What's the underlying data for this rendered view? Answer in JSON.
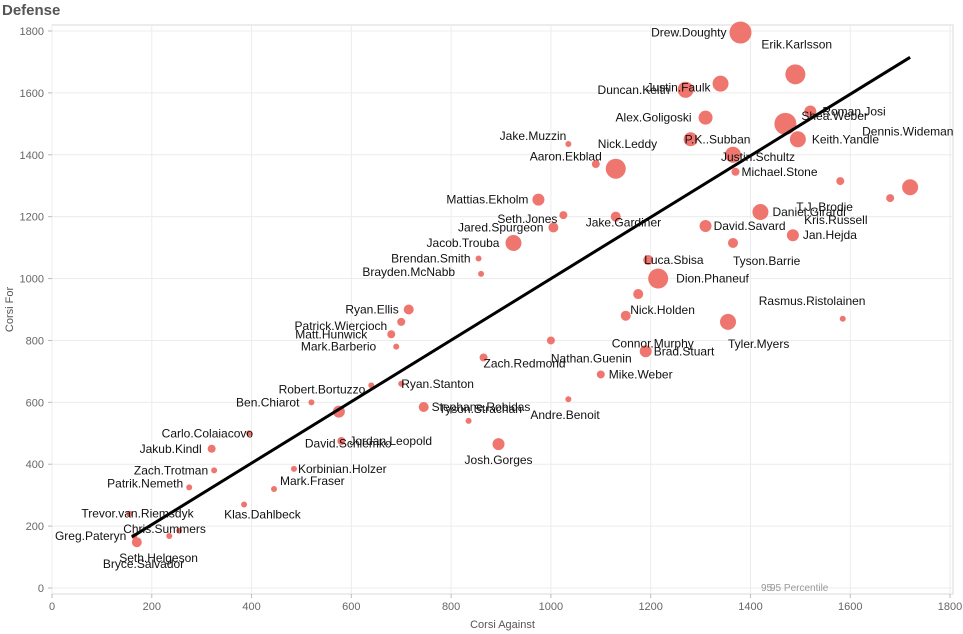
{
  "title": "Defense",
  "chart_data": {
    "type": "scatter",
    "title": "Defense",
    "xlabel": "Corsi Against",
    "ylabel": "Corsi For",
    "xlim": [
      0,
      1800
    ],
    "ylim": [
      0,
      1800
    ],
    "xticks": [
      0,
      200,
      400,
      600,
      800,
      1000,
      1200,
      1400,
      1600,
      1800
    ],
    "yticks": [
      0,
      200,
      400,
      600,
      800,
      1000,
      1200,
      1400,
      1600,
      1800
    ],
    "grid": true,
    "point_color": "#EE6A62",
    "trend_color": "#000000",
    "trend_line": {
      "x": [
        160,
        1720
      ],
      "y": [
        165,
        1715
      ]
    },
    "annotation": "95 Percentile",
    "annotation_extra": "95",
    "labeled_points": [
      {
        "label": "Drew.Doughty",
        "x": 1380,
        "y": 1795,
        "size": 11
      },
      {
        "label": "Erik.Karlsson",
        "x": 1490,
        "y": 1660,
        "size": 10
      },
      {
        "label": "Justin.Faulk",
        "x": 1340,
        "y": 1630,
        "size": 8
      },
      {
        "label": "Duncan.Keith",
        "x": 1270,
        "y": 1610,
        "size": 8
      },
      {
        "label": "Roman.Josi",
        "x": 1520,
        "y": 1540,
        "size": 6
      },
      {
        "label": "Alex.Goligoski",
        "x": 1310,
        "y": 1520,
        "size": 7
      },
      {
        "label": "Shea.Weber",
        "x": 1470,
        "y": 1500,
        "size": 11
      },
      {
        "label": "P.K..Subban",
        "x": 1280,
        "y": 1450,
        "size": 7
      },
      {
        "label": "Jake.Muzzin",
        "x": 1035,
        "y": 1435,
        "size": 3
      },
      {
        "label": "Keith.Yandle",
        "x": 1495,
        "y": 1450,
        "size": 8
      },
      {
        "label": "Nick.Leddy",
        "x": 1090,
        "y": 1370,
        "size": 4
      },
      {
        "label": "Justin.Schultz",
        "x": 1365,
        "y": 1400,
        "size": 8
      },
      {
        "label": "Aaron.Ekblad",
        "x": 1130,
        "y": 1355,
        "size": 10
      },
      {
        "label": "Michael.Stone",
        "x": 1370,
        "y": 1345,
        "size": 4
      },
      {
        "label": "Dennis.Wideman",
        "x": 1720,
        "y": 1295,
        "size": 8
      },
      {
        "label": "T.J..Brodie",
        "x": 1580,
        "y": 1315,
        "size": 4
      },
      {
        "label": "Mattias.Ekholm",
        "x": 975,
        "y": 1255,
        "size": 6
      },
      {
        "label": "Kris.Russell",
        "x": 1680,
        "y": 1260,
        "size": 4
      },
      {
        "label": "Daniel.Girardi",
        "x": 1420,
        "y": 1215,
        "size": 8
      },
      {
        "label": "Seth.Jones",
        "x": 1025,
        "y": 1205,
        "size": 4
      },
      {
        "label": "Jake.Gardiner",
        "x": 1130,
        "y": 1200,
        "size": 5
      },
      {
        "label": "David.Savard",
        "x": 1310,
        "y": 1170,
        "size": 6
      },
      {
        "label": "Jared.Spurgeon",
        "x": 1005,
        "y": 1165,
        "size": 5
      },
      {
        "label": "Jan.Hejda",
        "x": 1485,
        "y": 1140,
        "size": 6
      },
      {
        "label": "Jacob.Trouba",
        "x": 925,
        "y": 1115,
        "size": 8
      },
      {
        "label": "Tyson.Barrie",
        "x": 1365,
        "y": 1115,
        "size": 5
      },
      {
        "label": "Brendan.Smith",
        "x": 855,
        "y": 1065,
        "size": 3
      },
      {
        "label": "Luca.Sbisa",
        "x": 1195,
        "y": 1060,
        "size": 5
      },
      {
        "label": "Brayden.McNabb",
        "x": 860,
        "y": 1015,
        "size": 3
      },
      {
        "label": "Dion.Phaneuf",
        "x": 1215,
        "y": 1000,
        "size": 10
      },
      {
        "label": "Ryan.Ellis",
        "x": 715,
        "y": 900,
        "size": 5
      },
      {
        "label": "Nick.Holden",
        "x": 1175,
        "y": 950,
        "size": 5
      },
      {
        "label": "Rasmus.Ristolainen",
        "x": 1585,
        "y": 870,
        "size": 3
      },
      {
        "label": "Patrick.Wiercioch",
        "x": 700,
        "y": 860,
        "size": 4
      },
      {
        "label": "Connor.Murphy",
        "x": 1150,
        "y": 880,
        "size": 5
      },
      {
        "label": "Matt.Hunwick",
        "x": 680,
        "y": 820,
        "size": 4
      },
      {
        "label": "Tyler.Myers",
        "x": 1355,
        "y": 860,
        "size": 8
      },
      {
        "label": "Nathan.Guenin",
        "x": 1000,
        "y": 800,
        "size": 4
      },
      {
        "label": "Mark.Barberio",
        "x": 690,
        "y": 780,
        "size": 3
      },
      {
        "label": "Brad.Stuart",
        "x": 1190,
        "y": 765,
        "size": 6
      },
      {
        "label": "Zach.Redmond",
        "x": 865,
        "y": 745,
        "size": 4
      },
      {
        "label": "Mike.Weber",
        "x": 1100,
        "y": 690,
        "size": 4
      },
      {
        "label": "Robert.Bortuzzo",
        "x": 640,
        "y": 655,
        "size": 3
      },
      {
        "label": "Ryan.Stanton",
        "x": 700,
        "y": 660,
        "size": 3
      },
      {
        "label": "Ben.Chiarot",
        "x": 520,
        "y": 600,
        "size": 3
      },
      {
        "label": "Andre.Benoit",
        "x": 1035,
        "y": 610,
        "size": 3
      },
      {
        "label": "Stephane.Robidas",
        "x": 745,
        "y": 585,
        "size": 5
      },
      {
        "label": "Tyson.Strachan",
        "x": 835,
        "y": 540,
        "size": 3
      },
      {
        "label": "David.Schlemko",
        "x": 575,
        "y": 570,
        "size": 6
      },
      {
        "label": "Carlo.Colaiacovo",
        "x": 395,
        "y": 500,
        "size": 3
      },
      {
        "label": "Jordan.Leopold",
        "x": 580,
        "y": 475,
        "size": 4
      },
      {
        "label": "Jakub.Kindl",
        "x": 320,
        "y": 450,
        "size": 4
      },
      {
        "label": "Josh.Gorges",
        "x": 895,
        "y": 465,
        "size": 6
      },
      {
        "label": "Korbinian.Holzer",
        "x": 485,
        "y": 385,
        "size": 3
      },
      {
        "label": "Zach.Trotman",
        "x": 325,
        "y": 380,
        "size": 3
      },
      {
        "label": "Patrik.Nemeth",
        "x": 275,
        "y": 325,
        "size": 3
      },
      {
        "label": "Mark.Fraser",
        "x": 445,
        "y": 320,
        "size": 3
      },
      {
        "label": "Klas.Dahlbeck",
        "x": 385,
        "y": 270,
        "size": 3
      },
      {
        "label": "Trevor.van.Riemsdyk",
        "x": 155,
        "y": 240,
        "size": 3
      },
      {
        "label": "Chris.Summers",
        "x": 255,
        "y": 185,
        "size": 3
      },
      {
        "label": "Greg.Pateryn",
        "x": 165,
        "y": 168,
        "size": 3
      },
      {
        "label": "Seth.Helgeson",
        "x": 235,
        "y": 168,
        "size": 3
      },
      {
        "label": "Bryce.Salvador",
        "x": 170,
        "y": 148,
        "size": 5
      }
    ]
  }
}
